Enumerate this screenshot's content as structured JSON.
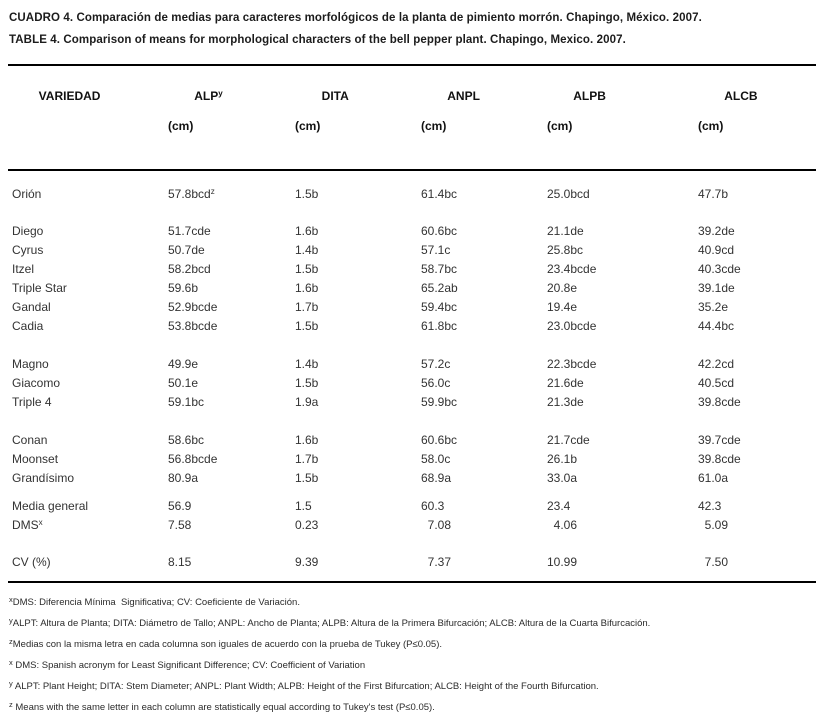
{
  "page": {
    "title_es": "CUADRO 4. Comparación de medias para caracteres morfológicos de la planta de pimiento morrón. Chapingo, México. 2007.",
    "title_en": "TABLE 4. Comparison of means for morphological characters of the bell pepper plant. Chapingo, Mexico. 2007."
  },
  "table": {
    "columns": [
      {
        "name": "VARIEDAD",
        "unit": ""
      },
      {
        "name": "ALP^y",
        "unit": "(cm)"
      },
      {
        "name": "DITA",
        "unit": "(cm)"
      },
      {
        "name": "ANPL",
        "unit": "(cm)"
      },
      {
        "name": "ALPB",
        "unit": "(cm)"
      },
      {
        "name": "ALCB",
        "unit": "(cm)"
      }
    ],
    "groups": [
      {
        "rows": [
          {
            "label": "Orión",
            "cells": [
              "57.8bcd^z",
              "1.5b",
              "61.4bc",
              "25.0bcd",
              "47.7b"
            ]
          }
        ]
      },
      {
        "rows": [
          {
            "label": "Diego",
            "cells": [
              "51.7cde",
              "1.6b",
              "60.6bc",
              "21.1de",
              "39.2de"
            ]
          },
          {
            "label": "Cyrus",
            "cells": [
              "50.7de",
              "1.4b",
              "57.1c",
              "25.8bc",
              "40.9cd"
            ]
          },
          {
            "label": "Itzel",
            "cells": [
              "58.2bcd",
              "1.5b",
              "58.7bc",
              "23.4bcde",
              "40.3cde"
            ]
          },
          {
            "label": "Triple Star",
            "cells": [
              "59.6b",
              "1.6b",
              "65.2ab",
              "20.8e",
              "39.1de"
            ]
          },
          {
            "label": "Gandal",
            "cells": [
              "52.9bcde",
              "1.7b",
              "59.4bc",
              "19.4e",
              "35.2e"
            ]
          },
          {
            "label": "Cadia",
            "cells": [
              "53.8bcde",
              "1.5b",
              "61.8bc",
              "23.0bcde",
              "44.4bc"
            ]
          }
        ]
      },
      {
        "rows": [
          {
            "label": "Magno",
            "cells": [
              "49.9e",
              "1.4b",
              "57.2c",
              "22.3bcde",
              "42.2cd"
            ]
          },
          {
            "label": "Giacomo",
            "cells": [
              "50.1e",
              "1.5b",
              "56.0c",
              "21.6de",
              "40.5cd"
            ]
          },
          {
            "label": "Triple 4",
            "cells": [
              "59.1bc",
              "1.9a",
              "59.9bc",
              "21.3de",
              "39.8cde"
            ]
          }
        ]
      },
      {
        "rows": [
          {
            "label": "Conan",
            "cells": [
              "58.6bc",
              "1.6b",
              "60.6bc",
              "21.7cde",
              "39.7cde"
            ]
          },
          {
            "label": "Moonset",
            "cells": [
              "56.8bcde",
              "1.7b",
              "58.0c",
              "26.1b",
              "39.8cde"
            ]
          },
          {
            "label": "Grandísimo",
            "cells": [
              "80.9a",
              "1.5b",
              "68.9a",
              "33.0a",
              "61.0a"
            ]
          }
        ]
      },
      {
        "rows": [
          {
            "label": "Media general",
            "cells": [
              "56.9",
              "1.5",
              "60.3",
              "23.4",
              "42.3"
            ]
          },
          {
            "label": "DMS^x",
            "cells": [
              "7.58",
              "0.23",
              "  7.08",
              "  4.06",
              "  5.09"
            ]
          }
        ]
      },
      {
        "rows": [
          {
            "label": "CV (%)",
            "cells": [
              "8.15",
              "9.39",
              "  7.37",
              "10.99",
              "  7.50"
            ]
          }
        ]
      }
    ]
  },
  "footnotes": [
    {
      "sup": "x",
      "text": "DMS: Diferencia Mínima  Significativa; CV: Coeficiente de Variación."
    },
    {
      "sup": "y",
      "text": "ALPT: Altura de Planta; DITA: Diámetro de Tallo; ANPL: Ancho de Planta; ALPB: Altura de la Primera Bifurcación; ALCB: Altura de la Cuarta Bifurcación."
    },
    {
      "sup": "z",
      "text": "Medias con la misma letra en cada columna son iguales de acuerdo con la prueba de Tukey (P≤0.05)."
    },
    {
      "sup": "x",
      "text": " DMS: Spanish acronym for Least Significant Difference; CV: Coefficient of Variation"
    },
    {
      "sup": "y",
      "text": " ALPT: Plant Height; DITA: Stem Diameter; ANPL: Plant Width; ALPB: Height of the First Bifurcation; ALCB: Height of the Fourth Bifurcation."
    },
    {
      "sup": "z",
      "text": " Means with the same letter in each column are statistically equal according to Tukey's test (P≤0.05)."
    }
  ]
}
